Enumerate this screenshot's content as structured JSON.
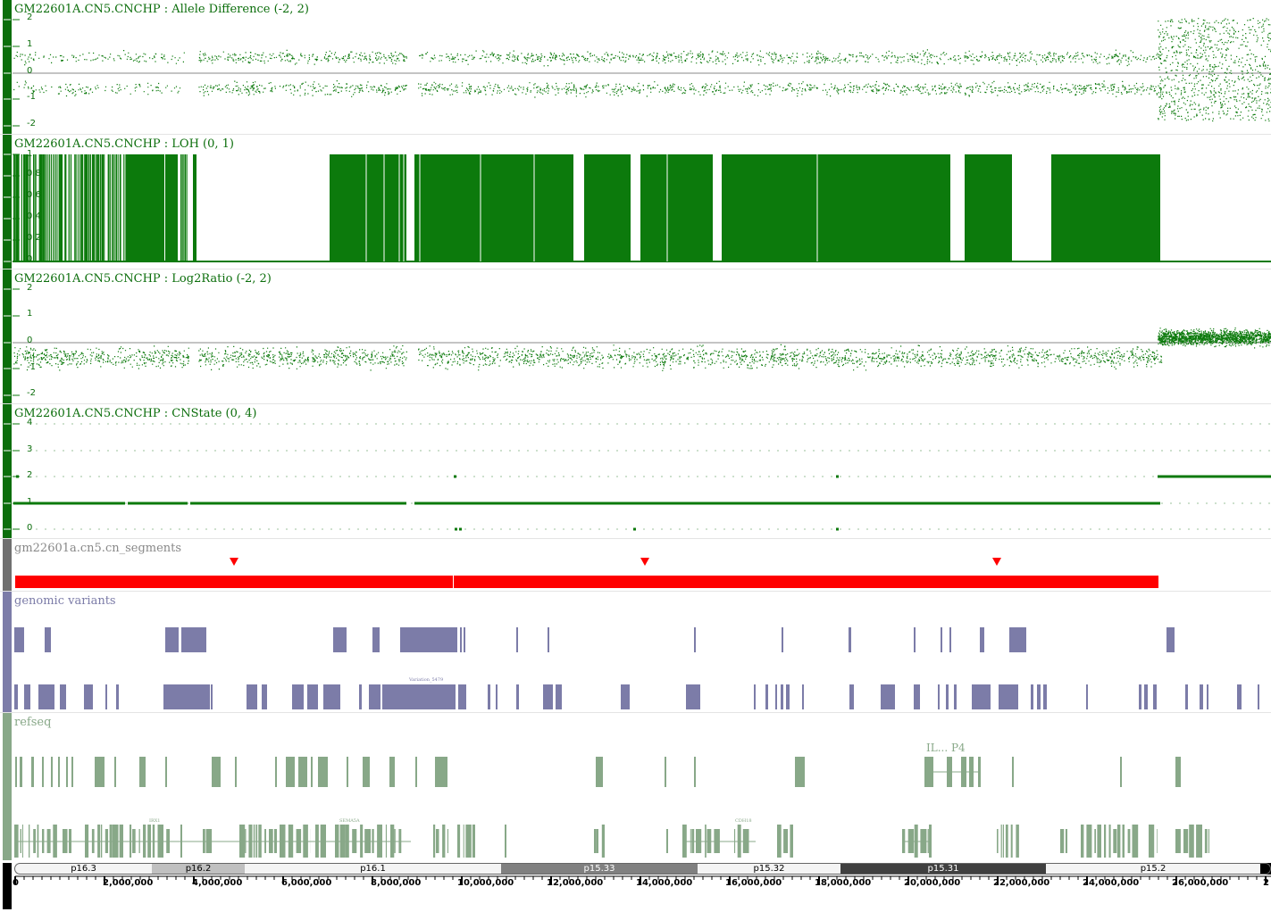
{
  "tracks": {
    "allele": {
      "label": "GM22601A.CN5.CNCHP : Allele Difference (-2, 2)",
      "ticks": [
        "2",
        "1",
        "0",
        "-1",
        "-2"
      ]
    },
    "loh": {
      "label": "GM22601A.CN5.CNCHP : LOH (0, 1)",
      "ticks": [
        "1",
        "0.8",
        "0.6",
        "0.4",
        "0.2",
        "0"
      ]
    },
    "log2": {
      "label": "GM22601A.CN5.CNCHP : Log2Ratio (-2, 2)",
      "ticks": [
        "2",
        "1",
        "0",
        "-1",
        "-2"
      ]
    },
    "cnstate": {
      "label": "GM22601A.CN5.CNCHP : CNState (0, 4)",
      "ticks": [
        "4",
        "3",
        "2",
        "1",
        "0"
      ]
    },
    "segments": {
      "label": "gm22601a.cn5.cn_segments"
    },
    "variants": {
      "label": "genomic variants",
      "feature_label": "Variation_5479"
    },
    "refseq": {
      "label": "refseq",
      "gene_labels": [
        "IRX1",
        "SEMA5A",
        "CDH18",
        "IRX4"
      ],
      "overlap_label": "IL... P4"
    }
  },
  "colors": {
    "data": "#0c7a0c",
    "segment": "#ff0000",
    "variant": "#7c7ca8",
    "gene": "#88a888"
  },
  "chromosome": {
    "bands": [
      {
        "name": "p16.3"
      },
      {
        "name": "p16.2"
      },
      {
        "name": "p16.1"
      },
      {
        "name": "p15.33"
      },
      {
        "name": "p15.32"
      },
      {
        "name": "p15.31"
      },
      {
        "name": "p15.2"
      }
    ],
    "axis_labels": [
      "0",
      "2,000,000",
      "4,000,000",
      "6,000,000",
      "8,000,000",
      "10,000,000",
      "12,000,000",
      "14,000,000",
      "16,000,000",
      "18,000,000",
      "20,000,000",
      "22,000,000",
      "24,000,000",
      "26,000,000",
      "2"
    ]
  }
}
